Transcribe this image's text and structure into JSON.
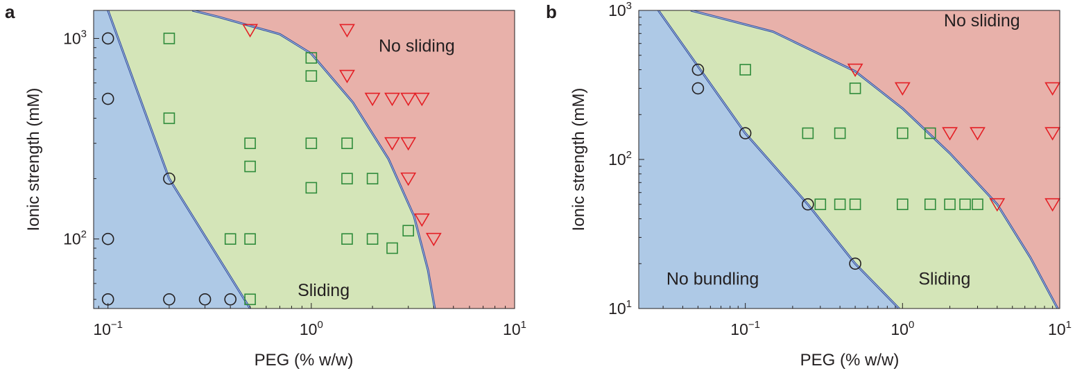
{
  "chart_data": [
    {
      "panel": "a",
      "type": "scatter",
      "xlabel": "PEG (% w/w)",
      "ylabel": "Ionic strength (mM)",
      "xscale": "log",
      "yscale": "log",
      "xlim": [
        0.085,
        10
      ],
      "ylim": [
        45,
        1380
      ],
      "xticks": [
        {
          "value": 0.1,
          "base": "10",
          "exp": "−1"
        },
        {
          "value": 1,
          "base": "10",
          "exp": "0"
        },
        {
          "value": 10,
          "base": "10",
          "exp": "1"
        }
      ],
      "yticks": [
        {
          "value": 100,
          "base": "10",
          "exp": "2"
        },
        {
          "value": 1000,
          "base": "10",
          "exp": "3"
        }
      ],
      "regions": [
        {
          "name": "No sliding",
          "color": "#e8b1aa",
          "label_at": [
            3.3,
            860
          ]
        },
        {
          "name": "Sliding",
          "color": "#d4e5b8",
          "label_at": [
            1.15,
            52
          ]
        },
        {
          "name": "",
          "color": "#aec9e6"
        }
      ],
      "boundaries": [
        {
          "color": "#2a4a9a",
          "points": [
            [
              0.1,
              1380
            ],
            [
              0.2,
              200
            ],
            [
              0.5,
              45
            ]
          ]
        },
        {
          "color": "#2a4a9a",
          "points": [
            [
              0.26,
              1380
            ],
            [
              0.35,
              1280
            ],
            [
              0.7,
              1050
            ],
            [
              1.0,
              840
            ],
            [
              1.6,
              480
            ],
            [
              2.4,
              250
            ],
            [
              3.2,
              130
            ],
            [
              3.75,
              70
            ],
            [
              4.05,
              45
            ]
          ]
        }
      ],
      "series": [
        {
          "marker": "circle",
          "color": "#231f20",
          "points": [
            [
              0.1,
              1000
            ],
            [
              0.1,
              500
            ],
            [
              0.2,
              200
            ],
            [
              0.1,
              100
            ],
            [
              0.1,
              50
            ],
            [
              0.2,
              50
            ],
            [
              0.3,
              50
            ],
            [
              0.4,
              50
            ]
          ]
        },
        {
          "marker": "square",
          "color": "#2e8b3a",
          "points": [
            [
              0.2,
              1000
            ],
            [
              0.2,
              400
            ],
            [
              1.0,
              800
            ],
            [
              1.0,
              650
            ],
            [
              0.5,
              300
            ],
            [
              0.5,
              230
            ],
            [
              1.0,
              300
            ],
            [
              1.5,
              300
            ],
            [
              1.0,
              180
            ],
            [
              1.5,
              200
            ],
            [
              2.0,
              200
            ],
            [
              0.4,
              100
            ],
            [
              0.5,
              100
            ],
            [
              1.5,
              100
            ],
            [
              2.0,
              100
            ],
            [
              2.5,
              90
            ],
            [
              3.0,
              110
            ],
            [
              0.5,
              50
            ]
          ]
        },
        {
          "marker": "triangle-down",
          "color": "#e41f25",
          "points": [
            [
              0.5,
              1100
            ],
            [
              1.5,
              1100
            ],
            [
              1.5,
              650
            ],
            [
              2.0,
              500
            ],
            [
              2.5,
              500
            ],
            [
              3.0,
              500
            ],
            [
              3.5,
              500
            ],
            [
              2.5,
              300
            ],
            [
              3.0,
              300
            ],
            [
              3.0,
              200
            ],
            [
              3.5,
              125
            ],
            [
              4.0,
              100
            ]
          ]
        }
      ]
    },
    {
      "panel": "b",
      "type": "scatter",
      "xlabel": "PEG (% w/w)",
      "ylabel": "Ionic strength (mM)",
      "xscale": "log",
      "yscale": "log",
      "xlim": [
        0.021,
        10
      ],
      "ylim": [
        10,
        1000
      ],
      "xticks": [
        {
          "value": 0.1,
          "base": "10",
          "exp": "−1"
        },
        {
          "value": 1,
          "base": "10",
          "exp": "0"
        },
        {
          "value": 10,
          "base": "10",
          "exp": "1"
        }
      ],
      "yticks": [
        {
          "value": 10,
          "base": "10",
          "exp": "1"
        },
        {
          "value": 100,
          "base": "10",
          "exp": "2"
        },
        {
          "value": 1000,
          "base": "10",
          "exp": "3"
        }
      ],
      "regions": [
        {
          "name": "No sliding",
          "color": "#e8b1aa",
          "label_at": [
            3.2,
            780
          ]
        },
        {
          "name": "Sliding",
          "color": "#d4e5b8",
          "label_at": [
            1.85,
            14.5
          ]
        },
        {
          "name": "No bundling",
          "color": "#aec9e6",
          "label_at": [
            0.062,
            14.5
          ]
        }
      ],
      "boundaries": [
        {
          "color": "#2a4a9a",
          "points": [
            [
              0.028,
              1000
            ],
            [
              0.1,
              150
            ],
            [
              0.25,
              50
            ],
            [
              0.5,
              20
            ],
            [
              0.95,
              10
            ]
          ]
        },
        {
          "color": "#2a4a9a",
          "points": [
            [
              0.045,
              1000
            ],
            [
              0.15,
              720
            ],
            [
              0.5,
              390
            ],
            [
              1.0,
              220
            ],
            [
              2.0,
              110
            ],
            [
              4.0,
              50
            ],
            [
              6.5,
              22
            ],
            [
              9.7,
              10
            ]
          ]
        }
      ],
      "series": [
        {
          "marker": "circle",
          "color": "#231f20",
          "points": [
            [
              0.05,
              400
            ],
            [
              0.05,
              300
            ],
            [
              0.1,
              150
            ],
            [
              0.25,
              50
            ],
            [
              0.5,
              20
            ]
          ]
        },
        {
          "marker": "square",
          "color": "#2e8b3a",
          "points": [
            [
              0.1,
              400
            ],
            [
              0.5,
              300
            ],
            [
              0.25,
              150
            ],
            [
              0.4,
              150
            ],
            [
              1.0,
              150
            ],
            [
              1.5,
              150
            ],
            [
              0.3,
              50
            ],
            [
              0.4,
              50
            ],
            [
              0.5,
              50
            ],
            [
              1.0,
              50
            ],
            [
              1.5,
              50
            ],
            [
              2.0,
              50
            ],
            [
              2.5,
              50
            ],
            [
              3.0,
              50
            ]
          ]
        },
        {
          "marker": "triangle-down",
          "color": "#e41f25",
          "points": [
            [
              0.5,
              400
            ],
            [
              1.0,
              300
            ],
            [
              9.0,
              300
            ],
            [
              2.0,
              150
            ],
            [
              3.0,
              150
            ],
            [
              9.0,
              150
            ],
            [
              4.0,
              50
            ],
            [
              9.0,
              50
            ]
          ]
        }
      ]
    }
  ]
}
